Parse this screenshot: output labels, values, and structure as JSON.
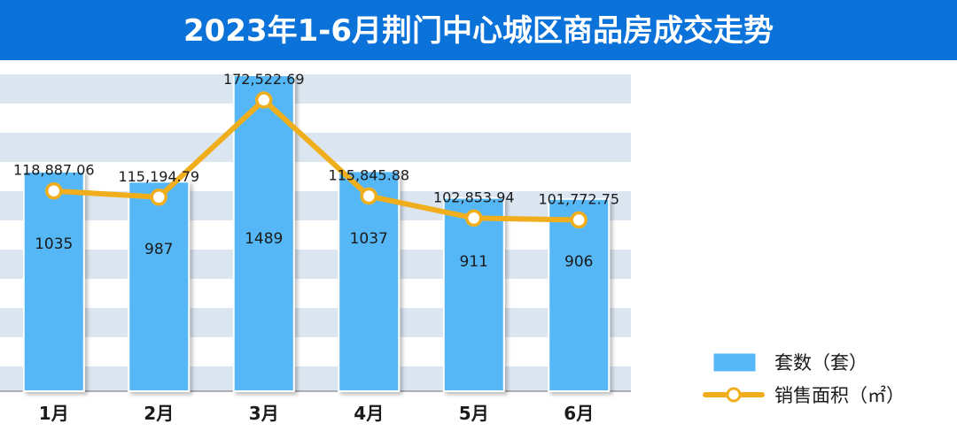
{
  "chart_data": {
    "type": "bar",
    "title": "2023年1-6月荆门中心城区商品房成交走势",
    "categories": [
      "1月",
      "2月",
      "3月",
      "4月",
      "5月",
      "6月"
    ],
    "series": [
      {
        "name": "套数（套）",
        "type": "bar",
        "values": [
          1035,
          987,
          1489,
          1037,
          911,
          906
        ],
        "labels": [
          "1035",
          "987",
          "1489",
          "1037",
          "911",
          "906"
        ]
      },
      {
        "name": "销售面积（㎡）",
        "type": "line",
        "values": [
          118887.06,
          115194.79,
          172522.69,
          115845.88,
          102853.94,
          101772.75
        ],
        "labels": [
          "118,887.06",
          "115,194.79",
          "172,522.69",
          "115,845.88",
          "102,853.94",
          "101,772.75"
        ]
      }
    ],
    "legend_position": "bottom-right",
    "grid": "horizontal bands",
    "colors": {
      "bar": "#56b7f7",
      "line": "#f0ae1c",
      "title_bg": "#0b72d9",
      "band": "#dbe6f1"
    }
  }
}
